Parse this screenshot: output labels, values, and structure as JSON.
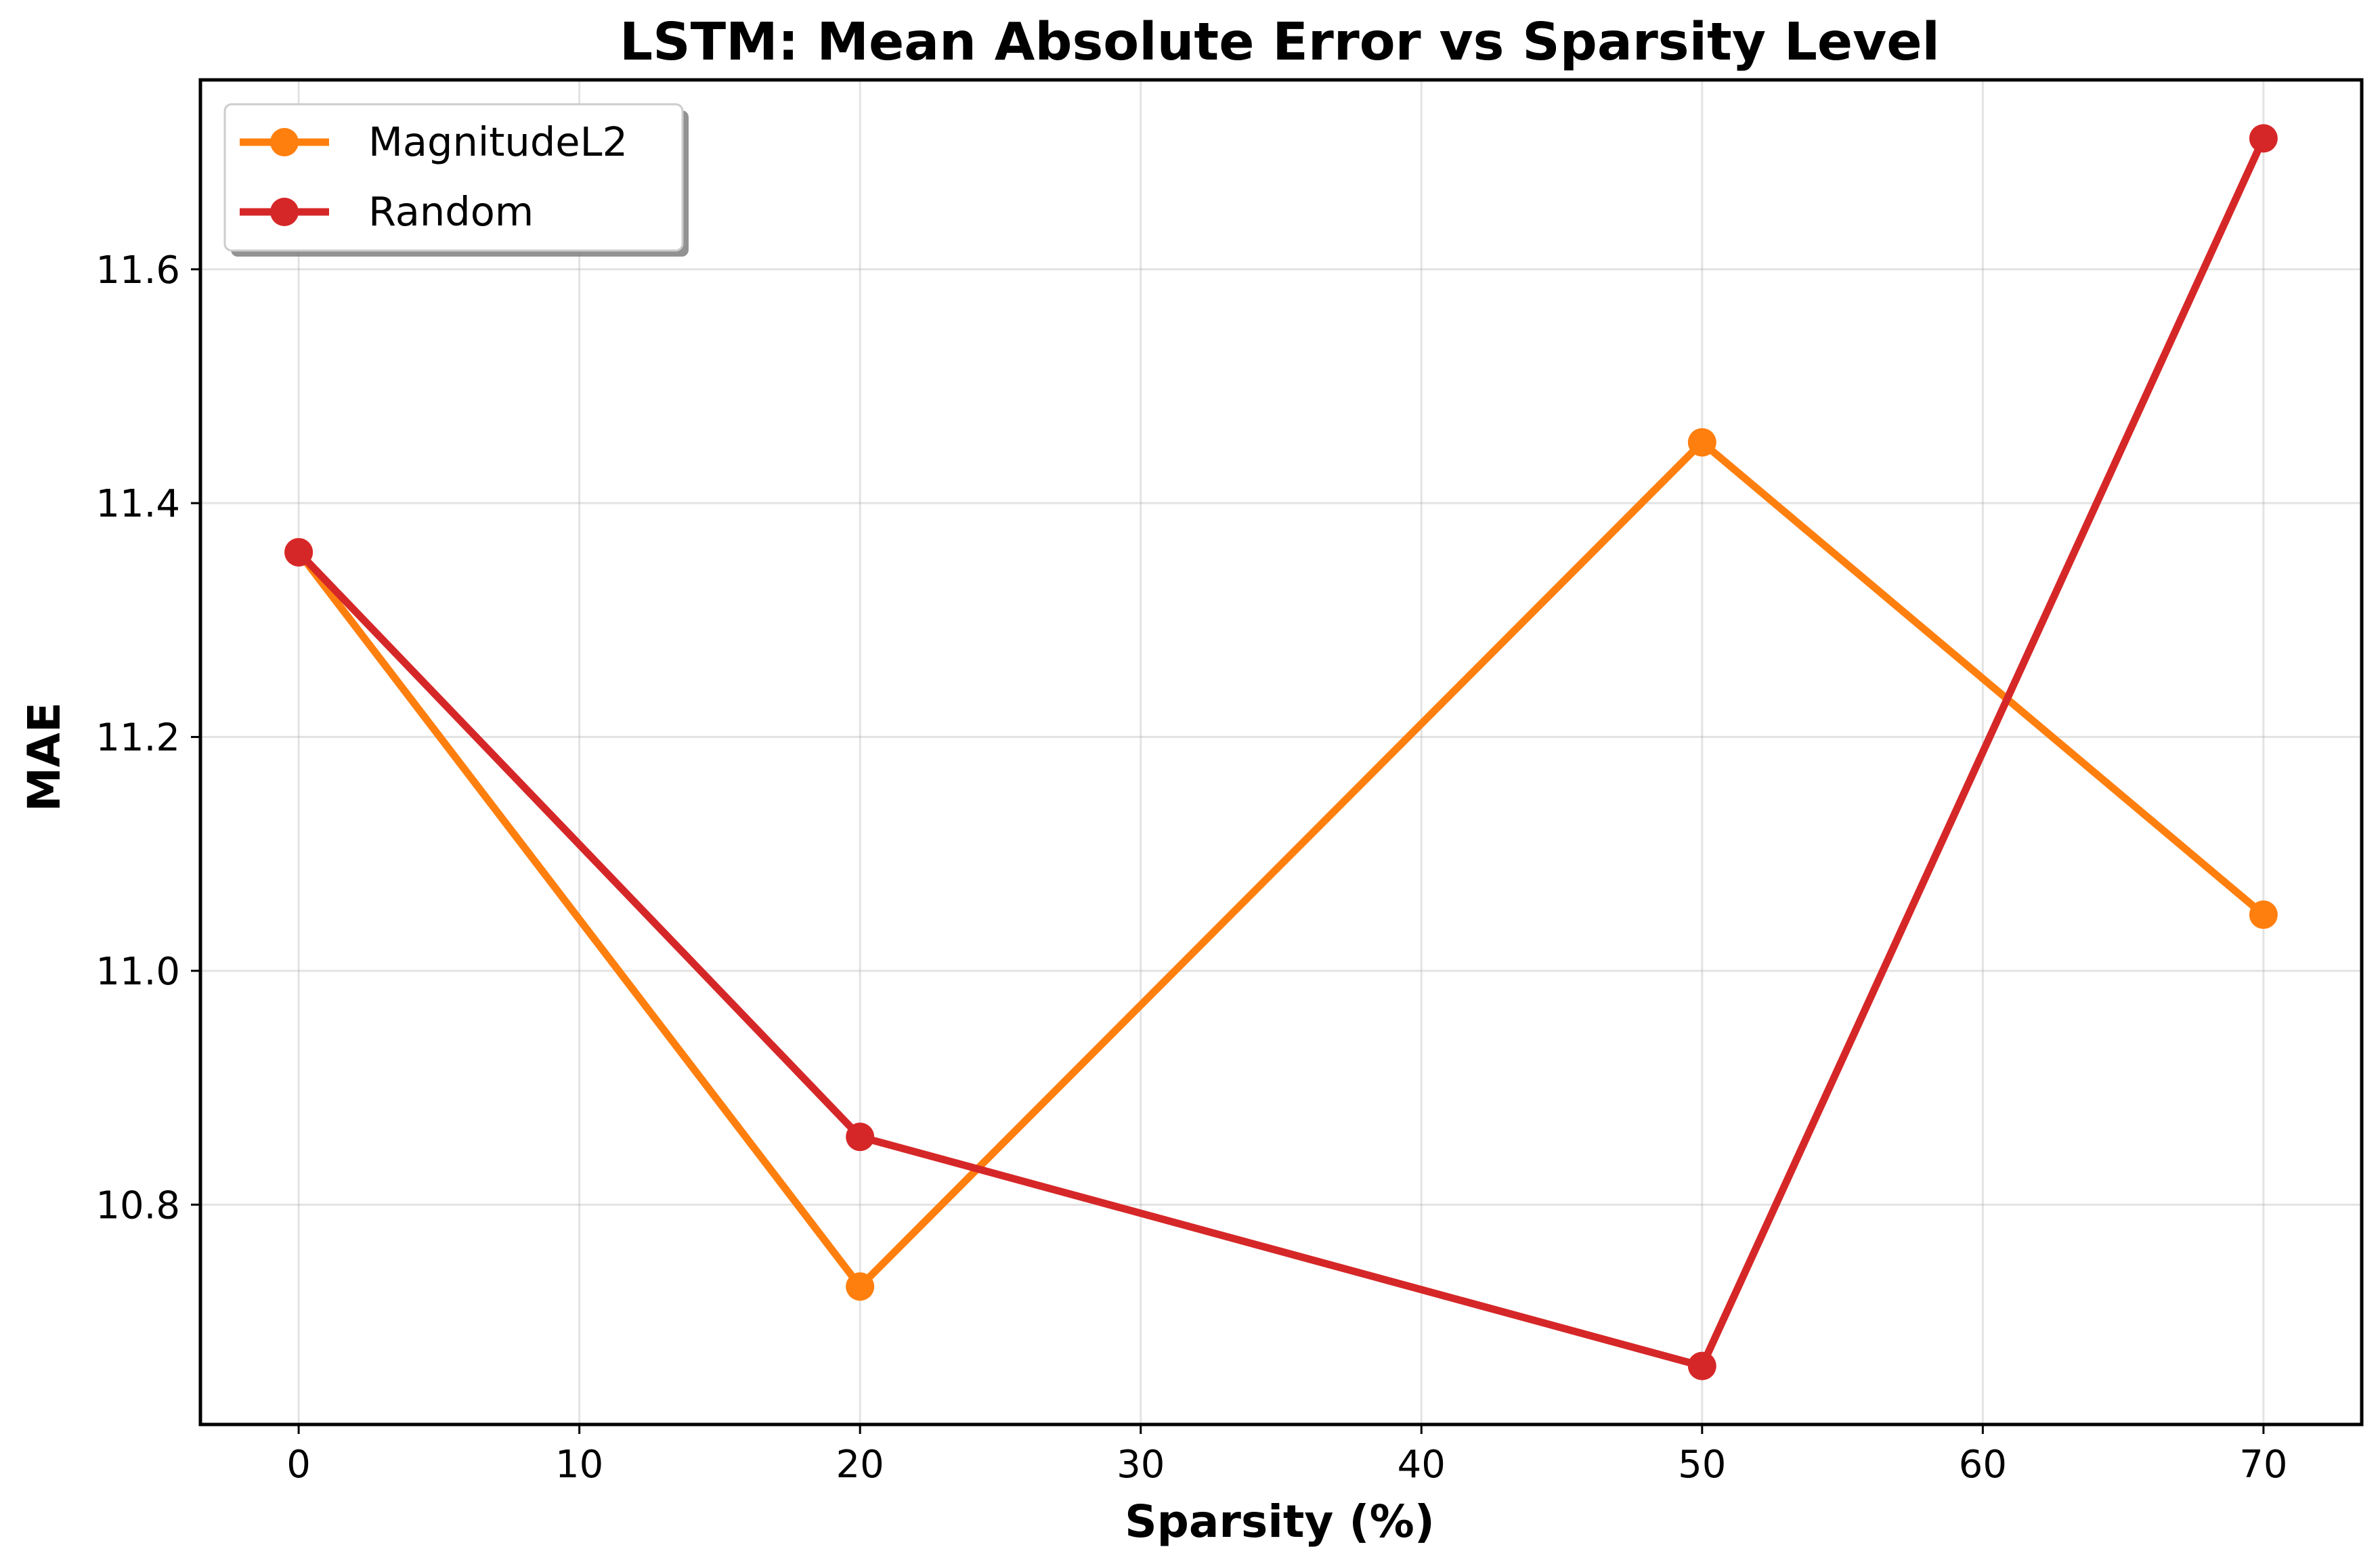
{
  "chart_data": {
    "type": "line",
    "title": "LSTM: Mean Absolute Error vs Sparsity Level",
    "xlabel": "Sparsity (%)",
    "ylabel": "MAE",
    "x": [
      0,
      20,
      50,
      70
    ],
    "series": [
      {
        "name": "MagnitudeL2",
        "color": "#ff7f0e",
        "values": [
          11.358,
          10.73,
          11.452,
          11.048
        ]
      },
      {
        "name": "Random",
        "color": "#d62728",
        "values": [
          11.358,
          10.858,
          10.662,
          11.712
        ]
      }
    ],
    "xlim": [
      -3.5,
      73.5
    ],
    "ylim": [
      10.612,
      11.762
    ],
    "xticks": [
      0,
      10,
      20,
      30,
      40,
      50,
      60,
      70
    ],
    "yticks": [
      10.8,
      11.0,
      11.2,
      11.4,
      11.6
    ],
    "ytick_labels": [
      "10.8",
      "11.0",
      "11.2",
      "11.4",
      "11.6"
    ],
    "grid": true,
    "legend_position": "top-left"
  }
}
